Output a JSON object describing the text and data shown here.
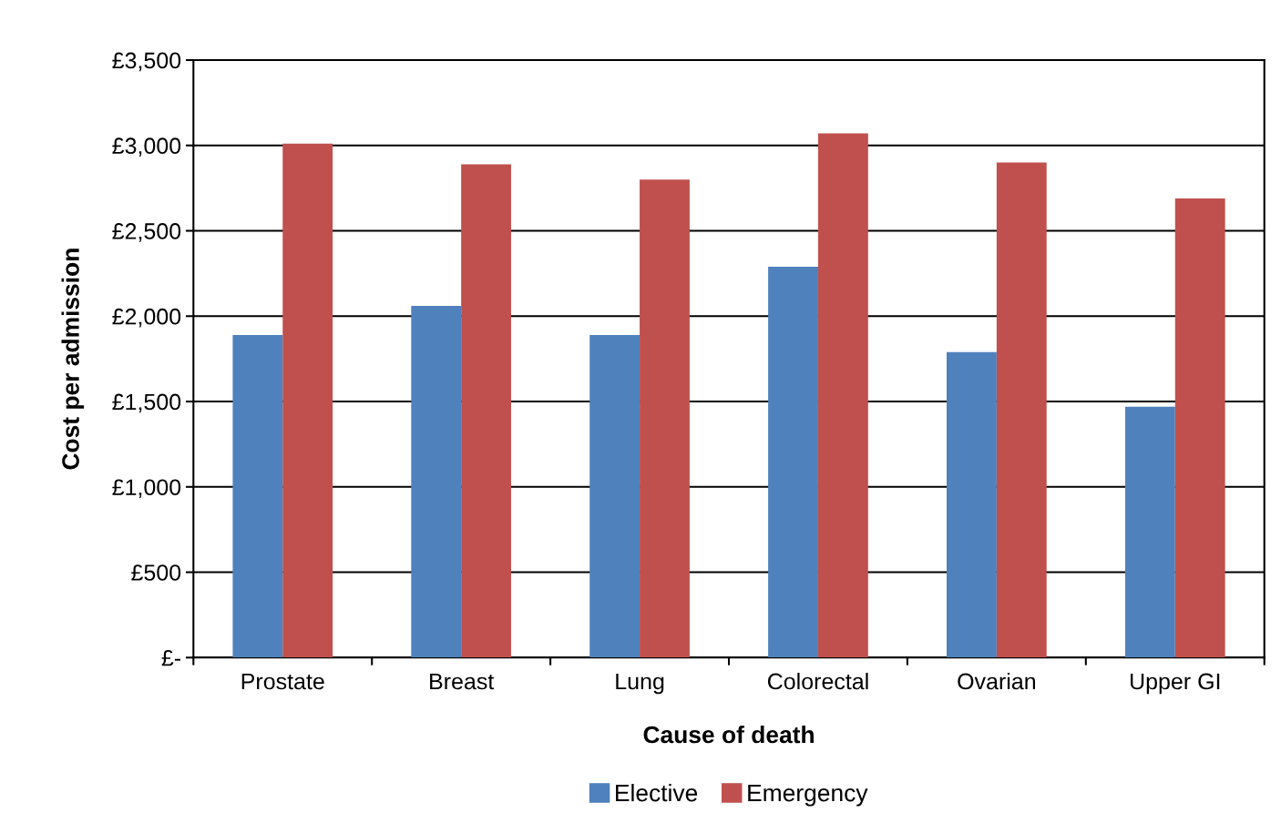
{
  "chart_data": {
    "type": "bar",
    "xlabel": "Cause of death",
    "ylabel": "Cost per admission",
    "categories": [
      "Prostate",
      "Breast",
      "Lung",
      "Colorectal",
      "Ovarian",
      "Upper GI"
    ],
    "series": [
      {
        "name": "Elective",
        "color": "#4f81bd",
        "values": [
          1890,
          2060,
          1890,
          2290,
          1790,
          1470
        ]
      },
      {
        "name": "Emergency",
        "color": "#c0504d",
        "values": [
          3010,
          2890,
          2800,
          3070,
          2900,
          2690
        ]
      }
    ],
    "ylim": [
      0,
      3500
    ],
    "yticks": [
      {
        "value": 0,
        "label": "£-"
      },
      {
        "value": 500,
        "label": "£500"
      },
      {
        "value": 1000,
        "label": "£1,000"
      },
      {
        "value": 1500,
        "label": "£1,500"
      },
      {
        "value": 2000,
        "label": "£2,000"
      },
      {
        "value": 2500,
        "label": "£2,500"
      },
      {
        "value": 3000,
        "label": "£3,000"
      },
      {
        "value": 3500,
        "label": "£3,500"
      }
    ],
    "grid": "y",
    "legend": "bottom"
  }
}
